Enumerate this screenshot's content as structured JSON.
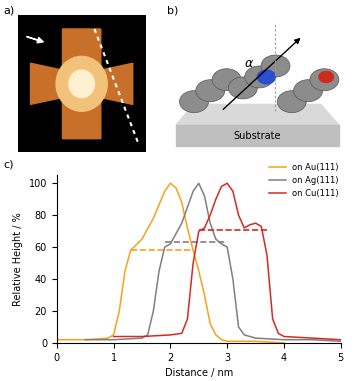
{
  "panel_labels": [
    "a)",
    "b)",
    "c)"
  ],
  "model": {
    "angle_label": "α",
    "substrate": "Substrate"
  },
  "chart_data": {
    "type": "line",
    "xlabel": "Distance / nm",
    "ylabel": "Relative Height / %",
    "xlim": [
      0,
      5
    ],
    "ylim": [
      0,
      105
    ],
    "xticks": [
      0,
      1,
      2,
      3,
      4,
      5
    ],
    "yticks": [
      0,
      20,
      40,
      60,
      80,
      100
    ],
    "legend": "upper right",
    "grid": false,
    "series": [
      {
        "name": "on Au(111)",
        "color": "#f5a21c",
        "line_style": "solid",
        "x": [
          0,
          0.5,
          0.9,
          1.0,
          1.1,
          1.2,
          1.3,
          1.5,
          1.7,
          1.9,
          2.0,
          2.1,
          2.2,
          2.3,
          2.4,
          2.5,
          2.6,
          2.7,
          2.8,
          2.9,
          3.0,
          3.5,
          4.0
        ],
        "values": [
          2,
          2,
          3,
          5,
          20,
          45,
          58,
          65,
          78,
          95,
          100,
          97,
          88,
          72,
          58,
          45,
          30,
          12,
          5,
          2,
          1,
          1,
          0
        ],
        "level": {
          "x": [
            1.3,
            2.4
          ],
          "y": 58
        }
      },
      {
        "name": "on Ag(111)",
        "color": "#7f7f7f",
        "line_style": "solid",
        "x": [
          0.5,
          1.0,
          1.5,
          1.6,
          1.7,
          1.8,
          1.9,
          2.0,
          2.2,
          2.4,
          2.5,
          2.6,
          2.7,
          2.8,
          2.9,
          3.0,
          3.1,
          3.2,
          3.3,
          3.5,
          4.0,
          4.5,
          5.0
        ],
        "values": [
          2,
          2,
          3,
          5,
          20,
          45,
          60,
          62,
          75,
          95,
          100,
          92,
          75,
          65,
          62,
          60,
          40,
          10,
          5,
          3,
          2,
          2,
          1
        ],
        "level": {
          "x": [
            1.9,
            3.0
          ],
          "y": 63
        }
      },
      {
        "name": "on Cu(111)",
        "color": "#d62a20",
        "line_style": "solid",
        "x": [
          1.0,
          1.5,
          2.0,
          2.2,
          2.3,
          2.4,
          2.5,
          2.6,
          2.7,
          2.8,
          2.9,
          3.0,
          3.1,
          3.2,
          3.3,
          3.4,
          3.5,
          3.6,
          3.7,
          3.8,
          3.9,
          4.0,
          4.5,
          5.0
        ],
        "values": [
          4,
          4,
          5,
          6,
          15,
          50,
          70,
          72,
          80,
          90,
          98,
          100,
          95,
          80,
          72,
          74,
          75,
          73,
          55,
          15,
          6,
          4,
          3,
          2
        ],
        "level": {
          "x": [
            2.5,
            3.7
          ],
          "y": 71
        }
      }
    ]
  }
}
